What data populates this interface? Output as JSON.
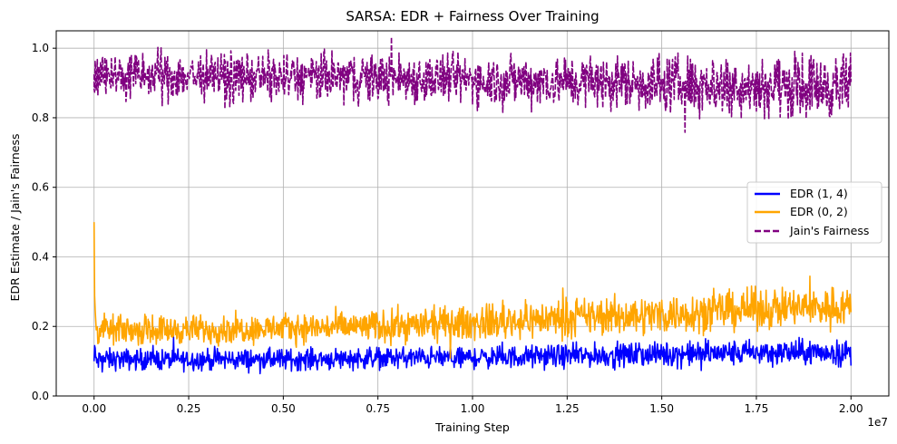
{
  "chart_data": {
    "type": "line",
    "title": "SARSA: EDR + Fairness Over Training",
    "xlabel": "Training Step",
    "ylabel": "EDR Estimate / Jain's Fairness",
    "x_offset_label": "1e7",
    "x_tick_labels": [
      "0.00",
      "0.25",
      "0.50",
      "0.75",
      "1.00",
      "1.25",
      "1.50",
      "1.75",
      "2.00"
    ],
    "y_tick_labels": [
      "0.0",
      "0.2",
      "0.4",
      "0.6",
      "0.8",
      "1.0"
    ],
    "xlim": [
      -0.1,
      2.1
    ],
    "ylim": [
      0.0,
      1.05
    ],
    "x_scale_factor": 10000000,
    "grid": true,
    "legend_position": "center-right",
    "series": [
      {
        "name": "EDR (1, 4)",
        "color": "#0000ff",
        "style": "solid",
        "x": [
          0.0,
          0.001,
          0.005,
          0.02,
          0.1,
          0.25,
          0.5,
          0.75,
          1.0,
          1.25,
          1.5,
          1.75,
          1.9,
          2.0
        ],
        "y": [
          0.1,
          0.15,
          0.1,
          0.105,
          0.105,
          0.105,
          0.105,
          0.11,
          0.11,
          0.115,
          0.12,
          0.125,
          0.125,
          0.125
        ],
        "spread": [
          0.015,
          0.0,
          0.015,
          0.015,
          0.015,
          0.015,
          0.015,
          0.015,
          0.015,
          0.016,
          0.017,
          0.018,
          0.018,
          0.018
        ]
      },
      {
        "name": "EDR (0, 2)",
        "color": "#ffa500",
        "style": "solid",
        "x": [
          0.0,
          0.0005,
          0.001,
          0.005,
          0.02,
          0.1,
          0.25,
          0.5,
          0.75,
          1.0,
          1.25,
          1.5,
          1.75,
          1.9,
          2.0
        ],
        "y": [
          0.5,
          0.5,
          0.3,
          0.19,
          0.19,
          0.19,
          0.19,
          0.195,
          0.2,
          0.21,
          0.225,
          0.235,
          0.25,
          0.255,
          0.26
        ],
        "spread": [
          0.0,
          0.0,
          0.0,
          0.02,
          0.02,
          0.02,
          0.02,
          0.02,
          0.022,
          0.024,
          0.026,
          0.027,
          0.028,
          0.028,
          0.028
        ]
      },
      {
        "name": "Jain's Fairness",
        "color": "#800080",
        "style": "dashed",
        "x": [
          0.0,
          0.1,
          0.25,
          0.5,
          0.75,
          1.0,
          1.25,
          1.5,
          1.75,
          1.9,
          2.0
        ],
        "y": [
          0.925,
          0.92,
          0.92,
          0.915,
          0.915,
          0.91,
          0.905,
          0.9,
          0.895,
          0.89,
          0.89
        ],
        "spread": [
          0.035,
          0.035,
          0.035,
          0.035,
          0.035,
          0.035,
          0.037,
          0.04,
          0.042,
          0.045,
          0.045
        ]
      }
    ]
  }
}
